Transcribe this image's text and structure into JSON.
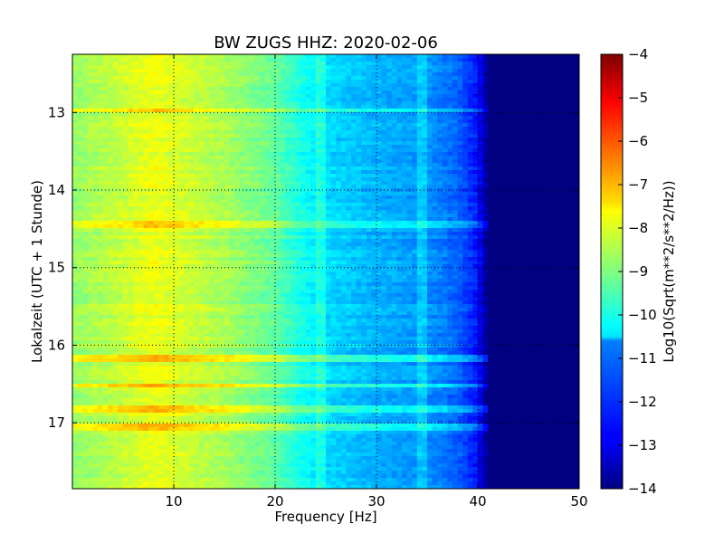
{
  "chart_data": {
    "type": "heatmap",
    "title": "BW ZUGS HHZ: 2020-02-06",
    "xlabel": "Frequency [Hz]",
    "ylabel": "Lokalzeit (UTC + 1 Stunde)",
    "colorbar_label": "Log10(Sqrt(m**2/s**2/Hz))",
    "xlim": [
      0,
      50
    ],
    "ylim": [
      12.25,
      17.85
    ],
    "y_inverted": true,
    "xticks": [
      10,
      20,
      30,
      40,
      50
    ],
    "yticks": [
      13,
      14,
      15,
      16,
      17
    ],
    "clim": [
      -14,
      -4
    ],
    "cticks": [
      -4,
      -5,
      -6,
      -7,
      -8,
      -9,
      -10,
      -11,
      -12,
      -13,
      -14
    ],
    "colormap": "jet",
    "grid": true,
    "spectrum_profile": {
      "frequency_hz": [
        0,
        5,
        8,
        10,
        15,
        20,
        22,
        25,
        30,
        35,
        38,
        40,
        41,
        50
      ],
      "log10_psd": [
        -8.8,
        -8.3,
        -7.9,
        -8.1,
        -8.6,
        -9.3,
        -9.9,
        -10.6,
        -11.0,
        -11.3,
        -11.8,
        -12.6,
        -14.0,
        -14.0
      ]
    },
    "broadband_bursts_hour": [
      12.98,
      14.45,
      16.18,
      16.52,
      16.82,
      17.07
    ]
  }
}
